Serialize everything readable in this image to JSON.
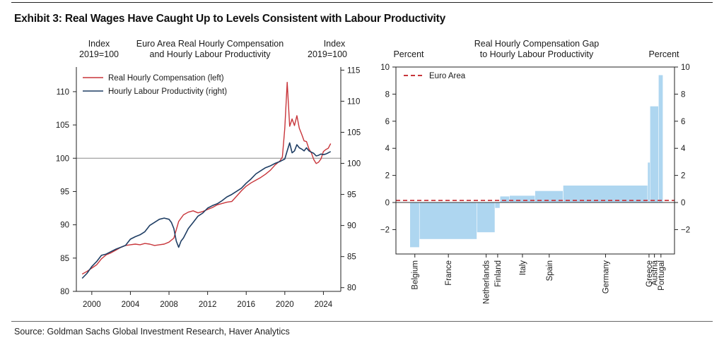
{
  "exhibit_title": "Exhibit 3: Real Wages Have Caught Up to Levels Consistent with Labour Productivity",
  "source": "Source: Goldman Sachs Global Investment Research, Haver Analytics",
  "colors": {
    "wages": "#c8353a",
    "productivity": "#1f3e64",
    "bars": "#aed6f0",
    "euro_area": "#c8353a"
  },
  "chart_data": [
    {
      "type": "line",
      "title_lines": [
        "Euro Area Real Hourly Compensation",
        "and Hourly Labour Productivity"
      ],
      "left_unit_lines": [
        "Index",
        "2019=100"
      ],
      "right_unit_lines": [
        "Index",
        "2019=100"
      ],
      "reference_line": 100,
      "x_ticks": [
        2000,
        2004,
        2008,
        2012,
        2016,
        2020,
        2024
      ],
      "xlim": [
        1998.4,
        2025.8
      ],
      "y_left": {
        "lim": [
          80,
          113.7
        ],
        "ticks": [
          80,
          85,
          90,
          95,
          100,
          105,
          110
        ]
      },
      "y_right": {
        "lim": [
          79.4,
          115.5
        ],
        "ticks": [
          80,
          85,
          90,
          95,
          100,
          105,
          110,
          115
        ]
      },
      "legend_position": "top-left",
      "series": [
        {
          "name": "Real Hourly Compensation (left)",
          "axis": "left",
          "x": [
            1999.0,
            1999.5,
            2000.0,
            2000.5,
            2001.0,
            2001.5,
            2002.0,
            2002.5,
            2003.0,
            2003.5,
            2004.0,
            2004.5,
            2005.0,
            2005.5,
            2006.0,
            2006.5,
            2007.0,
            2007.5,
            2008.0,
            2008.5,
            2009.0,
            2009.5,
            2010.0,
            2010.5,
            2011.0,
            2011.5,
            2012.0,
            2012.5,
            2013.0,
            2013.5,
            2014.0,
            2014.5,
            2015.0,
            2015.5,
            2016.0,
            2016.5,
            2017.0,
            2017.5,
            2018.0,
            2018.5,
            2019.0,
            2019.5,
            2019.75,
            2020.0,
            2020.25,
            2020.5,
            2020.75,
            2021.0,
            2021.25,
            2021.5,
            2021.75,
            2022.0,
            2022.25,
            2022.5,
            2022.75,
            2023.0,
            2023.25,
            2023.5,
            2023.75,
            2024.0,
            2024.25,
            2024.5,
            2024.75
          ],
          "values": [
            82.6,
            83.0,
            83.5,
            84.0,
            84.9,
            85.5,
            85.8,
            86.2,
            86.6,
            86.9,
            87.0,
            87.1,
            87.0,
            87.2,
            87.1,
            86.9,
            87.0,
            87.1,
            87.4,
            88.0,
            90.5,
            91.5,
            91.9,
            92.1,
            91.8,
            92.0,
            92.3,
            92.6,
            93.0,
            93.2,
            93.4,
            93.5,
            94.3,
            95.1,
            95.8,
            96.3,
            96.7,
            97.1,
            97.6,
            98.2,
            99.0,
            99.6,
            100.2,
            104.5,
            111.4,
            104.8,
            105.9,
            104.9,
            106.4,
            104.5,
            103.6,
            102.6,
            102.5,
            101.4,
            100.8,
            99.8,
            99.2,
            99.4,
            99.9,
            101.0,
            101.3,
            101.5,
            102.2
          ]
        },
        {
          "name": "Hourly Labour Productivity (right)",
          "axis": "right",
          "x": [
            1999.0,
            1999.5,
            2000.0,
            2000.5,
            2001.0,
            2001.5,
            2002.0,
            2002.5,
            2003.0,
            2003.5,
            2004.0,
            2004.5,
            2005.0,
            2005.5,
            2006.0,
            2006.5,
            2007.0,
            2007.5,
            2008.0,
            2008.25,
            2008.5,
            2008.75,
            2009.0,
            2009.25,
            2009.5,
            2010.0,
            2010.5,
            2011.0,
            2011.5,
            2012.0,
            2012.5,
            2013.0,
            2013.5,
            2014.0,
            2014.5,
            2015.0,
            2015.5,
            2016.0,
            2016.5,
            2017.0,
            2017.5,
            2018.0,
            2018.5,
            2019.0,
            2019.5,
            2019.75,
            2020.0,
            2020.25,
            2020.5,
            2020.75,
            2021.0,
            2021.25,
            2021.5,
            2021.75,
            2022.0,
            2022.25,
            2022.5,
            2022.75,
            2023.0,
            2023.25,
            2023.5,
            2023.75,
            2024.0,
            2024.25,
            2024.5,
            2024.75
          ],
          "values": [
            81.5,
            82.3,
            83.4,
            84.2,
            85.2,
            85.4,
            85.8,
            86.2,
            86.5,
            86.8,
            87.8,
            88.2,
            88.5,
            89.0,
            90.0,
            90.5,
            91.0,
            91.2,
            91.0,
            90.5,
            89.5,
            87.5,
            86.5,
            87.5,
            88.0,
            89.5,
            90.5,
            91.5,
            92.0,
            92.8,
            93.2,
            93.5,
            94.0,
            94.6,
            95.0,
            95.5,
            96.0,
            96.8,
            97.5,
            98.3,
            98.8,
            99.3,
            99.6,
            100.0,
            100.3,
            100.5,
            100.7,
            102.0,
            103.3,
            101.7,
            102.0,
            103.0,
            102.5,
            102.3,
            102.0,
            102.5,
            102.0,
            101.8,
            101.6,
            101.2,
            101.3,
            101.5,
            101.4,
            101.5,
            101.7,
            101.9
          ]
        }
      ]
    },
    {
      "type": "bar",
      "subtype": "variable-width",
      "title_lines": [
        "Real Hourly Compensation Gap",
        "to Hourly Labour Productivity"
      ],
      "left_unit": "Percent",
      "right_unit": "Percent",
      "ylim": [
        -3.8,
        10
      ],
      "y_ticks": [
        -2,
        0,
        2,
        4,
        6,
        8,
        10
      ],
      "y_tick_labels": [
        "−2",
        "0",
        "2",
        "4",
        "6",
        "8",
        "10"
      ],
      "reference_line": {
        "name": "Euro Area",
        "value": 0.15
      },
      "bars": [
        {
          "country": "Belgium",
          "value": -3.3,
          "weight": 3.6
        },
        {
          "country": "France",
          "value": -2.7,
          "weight": 21.7
        },
        {
          "country": "Netherlands",
          "value": -2.2,
          "weight": 6.8
        },
        {
          "country": "Finland",
          "value": -0.4,
          "weight": 1.9
        },
        {
          "country": "",
          "value": 0.45,
          "weight": 3.6
        },
        {
          "country": "Italy",
          "value": 0.5,
          "weight": 9.6
        },
        {
          "country": "Spain",
          "value": 0.85,
          "weight": 10.6
        },
        {
          "country": "Germany",
          "value": 1.25,
          "weight": 31.9
        },
        {
          "country": "Greece",
          "value": 2.95,
          "weight": 0.9
        },
        {
          "country": "Austria",
          "value": 7.1,
          "weight": 3.2
        },
        {
          "country": "Portugal",
          "value": 9.4,
          "weight": 1.7
        }
      ]
    }
  ]
}
